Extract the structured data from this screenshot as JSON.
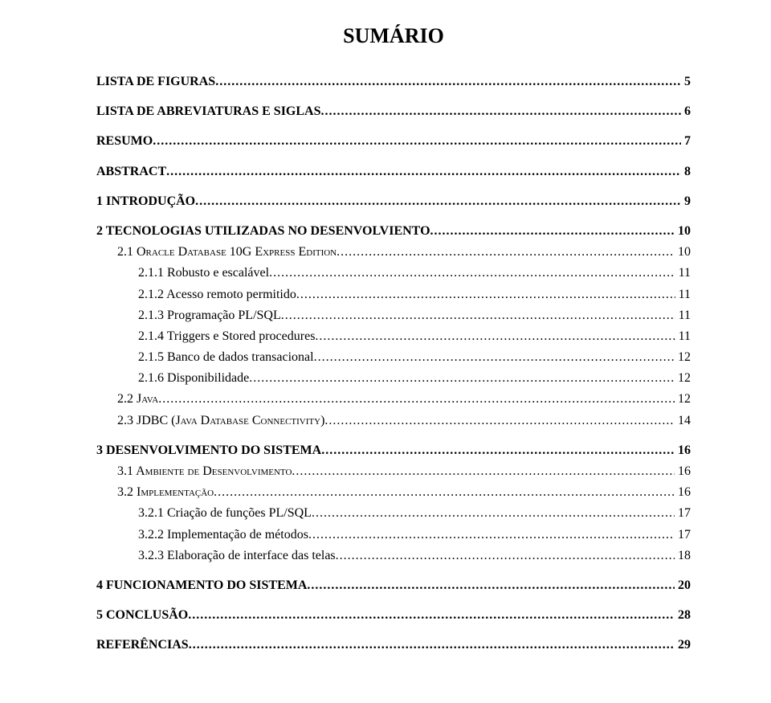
{
  "title": "SUMÁRIO",
  "typography": {
    "title_fontsize": 26,
    "body_fontsize": 16,
    "font_family": "Times New Roman",
    "color": "#000000",
    "background": "#ffffff"
  },
  "entries": [
    {
      "label": "LISTA DE FIGURAS",
      "page": "5",
      "bold": true,
      "indent": 0,
      "spaced": false,
      "smallcaps": false
    },
    {
      "label": "LISTA DE ABREVIATURAS E SIGLAS",
      "page": "6",
      "bold": true,
      "indent": 0,
      "spaced": true,
      "smallcaps": false
    },
    {
      "label": "RESUMO",
      "page": "7",
      "bold": true,
      "indent": 0,
      "spaced": true,
      "smallcaps": false
    },
    {
      "label": "ABSTRACT",
      "page": "8",
      "bold": true,
      "indent": 0,
      "spaced": true,
      "smallcaps": false
    },
    {
      "label": "1   INTRODUÇÃO",
      "page": "9",
      "bold": true,
      "indent": 0,
      "spaced": true,
      "smallcaps": false
    },
    {
      "label": "2   TECNOLOGIAS UTILIZADAS NO DESENVOLVIENTO",
      "page": "10",
      "bold": true,
      "indent": 0,
      "spaced": true,
      "smallcaps": false
    },
    {
      "label": "2.1   Oracle Database 10G Express Edition",
      "page": "10",
      "bold": false,
      "indent": 1,
      "spaced": false,
      "smallcaps": true
    },
    {
      "label": "2.1.1   Robusto e escalável",
      "page": "11",
      "bold": false,
      "indent": 2,
      "spaced": false,
      "smallcaps": false
    },
    {
      "label": "2.1.2   Acesso remoto permitido",
      "page": "11",
      "bold": false,
      "indent": 2,
      "spaced": false,
      "smallcaps": false
    },
    {
      "label": "2.1.3   Programação PL/SQL",
      "page": "11",
      "bold": false,
      "indent": 2,
      "spaced": false,
      "smallcaps": false
    },
    {
      "label": "2.1.4   Triggers e Stored procedures",
      "page": "11",
      "bold": false,
      "indent": 2,
      "spaced": false,
      "smallcaps": false
    },
    {
      "label": "2.1.5   Banco de dados transacional",
      "page": "12",
      "bold": false,
      "indent": 2,
      "spaced": false,
      "smallcaps": false
    },
    {
      "label": "2.1.6   Disponibilidade",
      "page": "12",
      "bold": false,
      "indent": 2,
      "spaced": false,
      "smallcaps": false
    },
    {
      "label": "2.2   Java",
      "page": "12",
      "bold": false,
      "indent": 1,
      "spaced": false,
      "smallcaps": true
    },
    {
      "label": "2.3   JDBC (Java Database Connectivity)",
      "page": "14",
      "bold": false,
      "indent": 1,
      "spaced": false,
      "smallcaps": true
    },
    {
      "label": "3   DESENVOLVIMENTO DO SISTEMA",
      "page": "16",
      "bold": true,
      "indent": 0,
      "spaced": true,
      "smallcaps": false
    },
    {
      "label": "3.1   Ambiente de Desenvolvimento",
      "page": "16",
      "bold": false,
      "indent": 1,
      "spaced": false,
      "smallcaps": true
    },
    {
      "label": "3.2   Implementação",
      "page": "16",
      "bold": false,
      "indent": 1,
      "spaced": false,
      "smallcaps": true
    },
    {
      "label": "3.2.1   Criação de funções PL/SQL",
      "page": "17",
      "bold": false,
      "indent": 2,
      "spaced": false,
      "smallcaps": false
    },
    {
      "label": "3.2.2   Implementação de métodos",
      "page": "17",
      "bold": false,
      "indent": 2,
      "spaced": false,
      "smallcaps": false
    },
    {
      "label": "3.2.3   Elaboração de interface das telas",
      "page": "18",
      "bold": false,
      "indent": 2,
      "spaced": false,
      "smallcaps": false
    },
    {
      "label": "4   FUNCIONAMENTO DO SISTEMA",
      "page": "20",
      "bold": true,
      "indent": 0,
      "spaced": true,
      "smallcaps": false
    },
    {
      "label": "5   CONCLUSÃO",
      "page": "28",
      "bold": true,
      "indent": 0,
      "spaced": true,
      "smallcaps": false
    },
    {
      "label": "REFERÊNCIAS",
      "page": "29",
      "bold": true,
      "indent": 0,
      "spaced": true,
      "smallcaps": false
    }
  ]
}
